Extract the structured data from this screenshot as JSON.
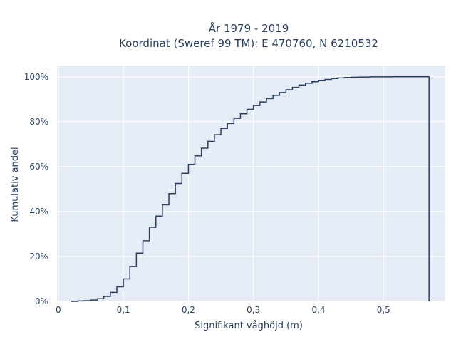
{
  "chart_data": {
    "type": "line",
    "subtype": "ecdf-step",
    "title_lines": [
      "År 1979 - 2019",
      "Koordinat (Sweref 99 TM): E 470760, N 6210532"
    ],
    "xlabel": "Signifikant våghöjd (m)",
    "ylabel": "Kumulativ andel",
    "xlim": [
      -0.002,
      0.595
    ],
    "ylim": [
      0,
      1.05
    ],
    "x_ticks": [
      0,
      0.1,
      0.2,
      0.3,
      0.4,
      0.5
    ],
    "x_tick_labels": [
      "0",
      "0,1",
      "0,2",
      "0,3",
      "0,4",
      "0,5"
    ],
    "y_ticks": [
      0,
      0.2,
      0.4,
      0.6,
      0.8,
      1.0
    ],
    "y_tick_labels": [
      "0%",
      "20%",
      "40%",
      "60%",
      "80%",
      "100%"
    ],
    "grid": true,
    "colors": {
      "line": "#2a3f5f",
      "plot_background": "#e5ecf6",
      "grid": "#ffffff"
    },
    "series": [
      {
        "x": [
          0.02,
          0.03,
          0.04,
          0.05,
          0.06,
          0.07,
          0.08,
          0.09,
          0.1,
          0.11,
          0.12,
          0.13,
          0.14,
          0.15,
          0.16,
          0.17,
          0.18,
          0.19,
          0.2,
          0.21,
          0.22,
          0.23,
          0.24,
          0.25,
          0.26,
          0.27,
          0.28,
          0.29,
          0.3,
          0.31,
          0.32,
          0.33,
          0.34,
          0.35,
          0.36,
          0.37,
          0.38,
          0.39,
          0.4,
          0.41,
          0.42,
          0.43,
          0.44,
          0.45,
          0.46,
          0.47,
          0.48,
          0.49,
          0.5,
          0.51,
          0.52,
          0.53,
          0.54,
          0.55,
          0.56,
          0.57
        ],
        "y": [
          0.0,
          0.002,
          0.003,
          0.006,
          0.012,
          0.022,
          0.04,
          0.065,
          0.1,
          0.155,
          0.215,
          0.27,
          0.33,
          0.38,
          0.43,
          0.48,
          0.525,
          0.57,
          0.61,
          0.648,
          0.682,
          0.712,
          0.742,
          0.77,
          0.792,
          0.815,
          0.835,
          0.855,
          0.872,
          0.888,
          0.903,
          0.917,
          0.93,
          0.942,
          0.953,
          0.963,
          0.971,
          0.978,
          0.984,
          0.988,
          0.992,
          0.995,
          0.997,
          0.998,
          0.9985,
          0.999,
          0.9995,
          0.9997,
          0.9998,
          0.9999,
          1.0,
          1.0,
          1.0,
          1.0,
          1.0,
          0.0
        ]
      }
    ]
  }
}
